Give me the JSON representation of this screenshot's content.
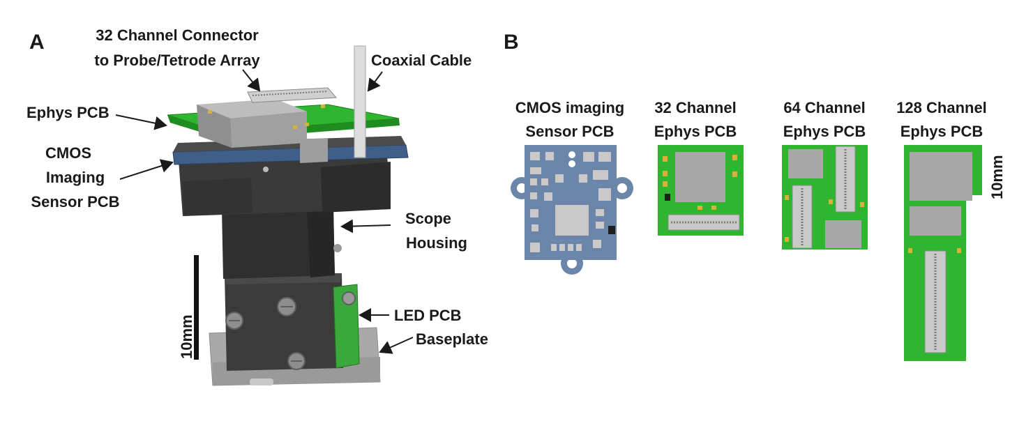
{
  "panel_a": {
    "letter": "A",
    "labels": {
      "connector_line1": "32 Channel Connector",
      "connector_line2": "to Probe/Tetrode Array",
      "coax": "Coaxial Cable",
      "ephys_pcb": "Ephys PCB",
      "cmos_line1": "CMOS",
      "cmos_line2": "Imaging",
      "cmos_line3": "Sensor PCB",
      "scope_line1": "Scope",
      "scope_line2": "Housing",
      "led_pcb": "LED PCB",
      "baseplate": "Baseplate",
      "scale": "10mm"
    }
  },
  "panel_b": {
    "letter": "B",
    "boards": [
      {
        "line1": "CMOS imaging",
        "line2": "Sensor PCB"
      },
      {
        "line1": "32 Channel",
        "line2": "Ephys PCB"
      },
      {
        "line1": "64 Channel",
        "line2": "Ephys PCB"
      },
      {
        "line1": "128 Channel",
        "line2": "Ephys PCB"
      }
    ],
    "scale": "10mm"
  },
  "colors": {
    "pcb_green": "#2fb52f",
    "pcb_blue": "#6b86a8",
    "housing": "#3b3b3b",
    "baseplate": "#a9a9a9",
    "chip": "#a7a7a7"
  }
}
